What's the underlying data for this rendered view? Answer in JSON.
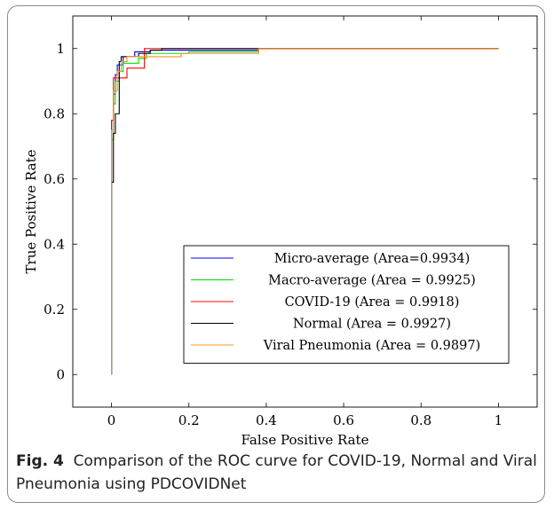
{
  "caption": {
    "label": "Fig. 4",
    "text": "Comparison of the ROC curve for COVID-19, Normal and Viral Pneumonia using PDCOVIDNet"
  },
  "chart_data": {
    "type": "line",
    "xlabel": "False Positive Rate",
    "ylabel": "True Positive Rate",
    "xlim": [
      -0.1,
      1.1
    ],
    "ylim": [
      -0.1,
      1.1
    ],
    "xticks": [
      0,
      0.2,
      0.4,
      0.6,
      0.8,
      1
    ],
    "yticks": [
      0,
      0.2,
      0.4,
      0.6,
      0.8,
      1
    ],
    "grid": false,
    "legend_position": "lower-right",
    "series": [
      {
        "name": "Micro-average (Area=0.9934)",
        "color": "#0000ff",
        "points": [
          [
            0,
            0
          ],
          [
            0,
            0.78
          ],
          [
            0.005,
            0.78
          ],
          [
            0.005,
            0.86
          ],
          [
            0.01,
            0.86
          ],
          [
            0.01,
            0.92
          ],
          [
            0.015,
            0.92
          ],
          [
            0.015,
            0.95
          ],
          [
            0.03,
            0.95
          ],
          [
            0.03,
            0.975
          ],
          [
            0.06,
            0.975
          ],
          [
            0.06,
            0.99
          ],
          [
            0.1,
            0.99
          ],
          [
            0.1,
            0.995
          ],
          [
            0.38,
            0.995
          ],
          [
            0.38,
            1
          ],
          [
            1,
            1
          ]
        ]
      },
      {
        "name": "Macro-average (Area = 0.9925)",
        "color": "#00e000",
        "points": [
          [
            0,
            0
          ],
          [
            0,
            0.72
          ],
          [
            0.005,
            0.72
          ],
          [
            0.005,
            0.83
          ],
          [
            0.01,
            0.83
          ],
          [
            0.01,
            0.9
          ],
          [
            0.02,
            0.9
          ],
          [
            0.02,
            0.93
          ],
          [
            0.03,
            0.93
          ],
          [
            0.03,
            0.955
          ],
          [
            0.07,
            0.955
          ],
          [
            0.07,
            0.97
          ],
          [
            0.09,
            0.97
          ],
          [
            0.09,
            0.985
          ],
          [
            0.2,
            0.985
          ],
          [
            0.2,
            0.99
          ],
          [
            0.38,
            0.99
          ],
          [
            0.38,
            1
          ],
          [
            1,
            1
          ]
        ]
      },
      {
        "name": "COVID-19 (Area = 0.9918)",
        "color": "#ff0000",
        "points": [
          [
            0,
            0
          ],
          [
            0,
            0.78
          ],
          [
            0.005,
            0.78
          ],
          [
            0.005,
            0.91
          ],
          [
            0.04,
            0.91
          ],
          [
            0.04,
            0.94
          ],
          [
            0.085,
            0.94
          ],
          [
            0.085,
            1
          ],
          [
            1,
            1
          ]
        ]
      },
      {
        "name": "Normal (Area = 0.9927)",
        "color": "#000000",
        "points": [
          [
            0,
            0
          ],
          [
            0,
            0.59
          ],
          [
            0.005,
            0.59
          ],
          [
            0.005,
            0.74
          ],
          [
            0.01,
            0.74
          ],
          [
            0.01,
            0.8
          ],
          [
            0.02,
            0.8
          ],
          [
            0.02,
            0.96
          ],
          [
            0.025,
            0.96
          ],
          [
            0.025,
            0.975
          ],
          [
            0.07,
            0.975
          ],
          [
            0.07,
            0.985
          ],
          [
            0.1,
            0.985
          ],
          [
            0.1,
            0.995
          ],
          [
            0.13,
            0.995
          ],
          [
            0.13,
            1
          ],
          [
            1,
            1
          ]
        ]
      },
      {
        "name": "Viral Pneumonia (Area = 0.9897)",
        "color": "#ff9020",
        "points": [
          [
            0,
            0
          ],
          [
            0,
            0.75
          ],
          [
            0.005,
            0.75
          ],
          [
            0.005,
            0.87
          ],
          [
            0.015,
            0.87
          ],
          [
            0.015,
            0.93
          ],
          [
            0.025,
            0.93
          ],
          [
            0.025,
            0.96
          ],
          [
            0.04,
            0.96
          ],
          [
            0.04,
            0.975
          ],
          [
            0.18,
            0.975
          ],
          [
            0.18,
            0.985
          ],
          [
            0.38,
            0.985
          ],
          [
            0.38,
            1
          ],
          [
            1,
            1
          ]
        ]
      }
    ]
  }
}
